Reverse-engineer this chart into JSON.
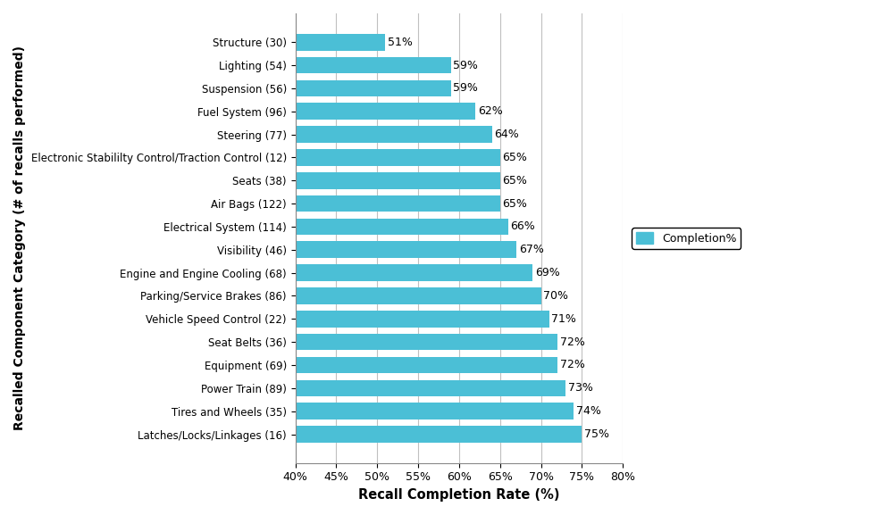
{
  "categories": [
    "Latches/Locks/Linkages (16)",
    "Tires and Wheels (35)",
    "Power Train (89)",
    "Equipment (69)",
    "Seat Belts (36)",
    "Vehicle Speed Control (22)",
    "Parking/Service Brakes (86)",
    "Engine and Engine Cooling (68)",
    "Visibility (46)",
    "Electrical System (114)",
    "Air Bags (122)",
    "Seats (38)",
    "Electronic Stabililty Control/Traction Control (12)",
    "Steering (77)",
    "Fuel System (96)",
    "Suspension (56)",
    "Lighting (54)",
    "Structure (30)"
  ],
  "values": [
    75,
    74,
    73,
    72,
    72,
    71,
    70,
    69,
    67,
    66,
    65,
    65,
    65,
    64,
    62,
    59,
    59,
    51
  ],
  "bar_color": "#4BBFD6",
  "xlabel": "Recall Completion Rate (%)",
  "ylabel": "Recalled Component Category (# of recalls performed)",
  "xlim_min": 40,
  "xlim_max": 80,
  "xticks": [
    40,
    45,
    50,
    55,
    60,
    65,
    70,
    75,
    80
  ],
  "xtick_labels": [
    "40%",
    "45%",
    "50%",
    "55%",
    "60%",
    "65%",
    "70%",
    "75%",
    "80%"
  ],
  "legend_label": "Completion%",
  "background_color": "#FFFFFF",
  "grid_color": "#C0C0C0"
}
